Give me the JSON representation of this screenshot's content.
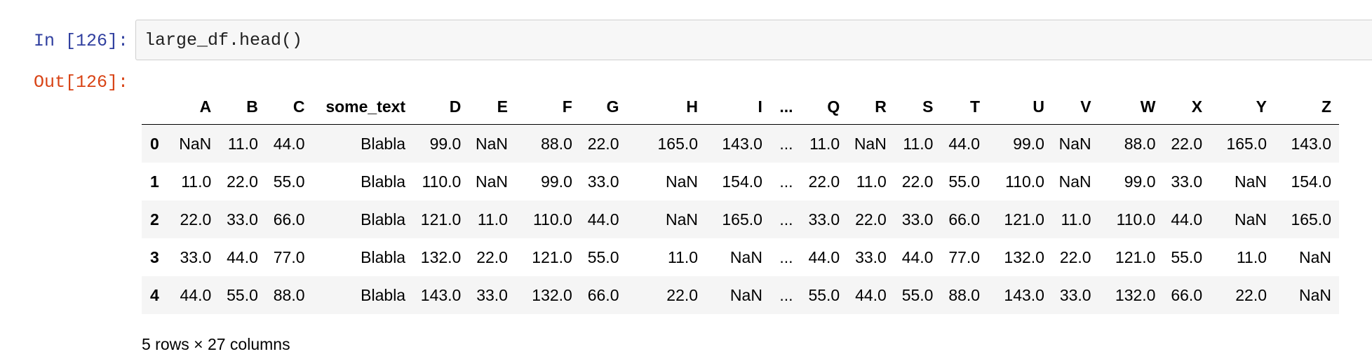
{
  "notebook": {
    "in_prompt": "In [126]:",
    "out_prompt": "Out[126]:",
    "code": "large_df.head()"
  },
  "dataframe": {
    "columns": [
      "A",
      "B",
      "C",
      "some_text",
      "D",
      "E",
      "F",
      "G",
      "H",
      "I",
      "...",
      "Q",
      "R",
      "S",
      "T",
      "U",
      "V",
      "W",
      "X",
      "Y",
      "Z"
    ],
    "index": [
      "0",
      "1",
      "2",
      "3",
      "4"
    ],
    "rows": [
      [
        "NaN",
        "11.0",
        "44.0",
        "Blabla",
        "99.0",
        "NaN",
        "88.0",
        "22.0",
        "165.0",
        "143.0",
        "...",
        "11.0",
        "NaN",
        "11.0",
        "44.0",
        "99.0",
        "NaN",
        "88.0",
        "22.0",
        "165.0",
        "143.0"
      ],
      [
        "11.0",
        "22.0",
        "55.0",
        "Blabla",
        "110.0",
        "NaN",
        "99.0",
        "33.0",
        "NaN",
        "154.0",
        "...",
        "22.0",
        "11.0",
        "22.0",
        "55.0",
        "110.0",
        "NaN",
        "99.0",
        "33.0",
        "NaN",
        "154.0"
      ],
      [
        "22.0",
        "33.0",
        "66.0",
        "Blabla",
        "121.0",
        "11.0",
        "110.0",
        "44.0",
        "NaN",
        "165.0",
        "...",
        "33.0",
        "22.0",
        "33.0",
        "66.0",
        "121.0",
        "11.0",
        "110.0",
        "44.0",
        "NaN",
        "165.0"
      ],
      [
        "33.0",
        "44.0",
        "77.0",
        "Blabla",
        "132.0",
        "22.0",
        "121.0",
        "55.0",
        "11.0",
        "NaN",
        "...",
        "44.0",
        "33.0",
        "44.0",
        "77.0",
        "132.0",
        "22.0",
        "121.0",
        "55.0",
        "11.0",
        "NaN"
      ],
      [
        "44.0",
        "55.0",
        "88.0",
        "Blabla",
        "143.0",
        "33.0",
        "132.0",
        "66.0",
        "22.0",
        "NaN",
        "...",
        "55.0",
        "44.0",
        "55.0",
        "88.0",
        "143.0",
        "33.0",
        "132.0",
        "66.0",
        "22.0",
        "NaN"
      ]
    ]
  },
  "footer": "5 rows × 27 columns",
  "colors": {
    "in_prompt": "#303f9f",
    "out_prompt": "#d84315",
    "cell_background": "#f7f7f7",
    "striped_row": "#f5f5f5"
  }
}
